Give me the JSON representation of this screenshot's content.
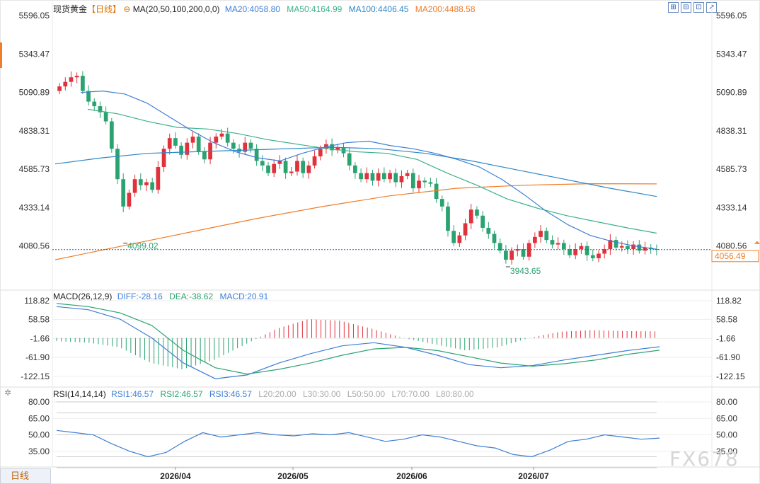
{
  "header": {
    "instrument": "现货黄金",
    "period": "【日线】",
    "ma_label": "MA(20,50,100,200,0,0)",
    "ma20": "MA20:4058.80",
    "ma50": "MA50:4164.99",
    "ma100": "MA100:4406.45",
    "ma200": "MA200:4488.58"
  },
  "toolbar": {
    "buttons": [
      "⊞",
      "⊟",
      "⊡",
      "↗"
    ]
  },
  "price_axis": {
    "ticks": [
      "5596.05",
      "5343.47",
      "5090.89",
      "4838.31",
      "4585.73",
      "4333.14",
      "4080.56"
    ],
    "current": "4056.49"
  },
  "annotations": {
    "low1": "4099.02",
    "low2": "3943.65"
  },
  "macd": {
    "label": "MACD(26,12,9)",
    "diff": "DIFF:-28.16",
    "dea": "DEA:-38.62",
    "macd": "MACD:20.91",
    "ticks": [
      "118.82",
      "58.58",
      "-1.66",
      "-61.90",
      "-122.15"
    ]
  },
  "rsi": {
    "label": "RSI(14,14,14)",
    "rsi1": "RSI1:46.57",
    "rsi2": "RSI2:46.57",
    "rsi3": "RSI3:46.57",
    "l20": "L20:20.00",
    "l30": "L30:30.00",
    "l50": "L50:50.00",
    "l70": "L70:70.00",
    "l80": "L80:80.00",
    "ticks": [
      "80.00",
      "65.00",
      "50.00",
      "35.00"
    ]
  },
  "x_axis": {
    "labels": [
      "2026/04",
      "2026/05",
      "2026/06",
      "2026/07"
    ]
  },
  "bottom_tab": "日线",
  "watermark": "FX678",
  "colors": {
    "up": "#e0323c",
    "down": "#2aa371",
    "ma20": "#3e7fd6",
    "ma50": "#3bb08a",
    "ma100": "#2f88c8",
    "ma200": "#ef7d2a",
    "diff": "#3e7fd6",
    "dea": "#2aa371"
  },
  "chart_data": [
    {
      "type": "candlestick",
      "title": "现货黄金【日线】",
      "ylim": [
        3943.65,
        5596.05
      ],
      "y_ticks": [
        5596.05,
        5343.47,
        5090.89,
        4838.31,
        4585.73,
        4333.14,
        4080.56
      ],
      "x_labels": [
        "2026/04",
        "2026/05",
        "2026/06",
        "2026/07"
      ],
      "close": [
        5130,
        5160,
        5190,
        5200,
        5100,
        5030,
        5000,
        4960,
        4900,
        4720,
        4520,
        4340,
        4430,
        4520,
        4480,
        4500,
        4450,
        4600,
        4720,
        4790,
        4740,
        4680,
        4760,
        4800,
        4700,
        4650,
        4760,
        4800,
        4820,
        4760,
        4720,
        4700,
        4760,
        4720,
        4640,
        4610,
        4560,
        4620,
        4640,
        4560,
        4570,
        4640,
        4560,
        4610,
        4670,
        4720,
        4750,
        4710,
        4730,
        4690,
        4610,
        4560,
        4520,
        4560,
        4510,
        4560,
        4520,
        4560,
        4500,
        4540,
        4560,
        4460,
        4510,
        4500,
        4490,
        4390,
        4340,
        4180,
        4100,
        4150,
        4230,
        4320,
        4280,
        4200,
        4160,
        4100,
        4050,
        3990,
        4050,
        4060,
        4010,
        4100,
        4140,
        4180,
        4120,
        4090,
        4100,
        4060,
        4020,
        4060,
        4080,
        4020,
        4000,
        4030,
        4060,
        4120,
        4070,
        4080,
        4060,
        4090,
        4050,
        4070,
        4060,
        4056
      ],
      "ma20": [
        5090,
        5100,
        5080,
        5020,
        4930,
        4840,
        4760,
        4700,
        4660,
        4640,
        4690,
        4730,
        4760,
        4770,
        4740,
        4720,
        4690,
        4650,
        4600,
        4520,
        4420,
        4310,
        4220,
        4150,
        4110,
        4080,
        4059
      ],
      "ma50": [
        4980,
        4950,
        4900,
        4860,
        4850,
        4820,
        4780,
        4750,
        4720,
        4700,
        4690,
        4650,
        4560,
        4480,
        4390,
        4330,
        4280,
        4240,
        4200,
        4165
      ],
      "ma100": [
        4620,
        4660,
        4690,
        4700,
        4710,
        4720,
        4730,
        4720,
        4690,
        4640,
        4580,
        4520,
        4460,
        4406
      ],
      "ma200": [
        3990,
        4080,
        4170,
        4260,
        4340,
        4410,
        4460,
        4480,
        4490,
        4489
      ]
    },
    {
      "type": "bar",
      "title": "MACD(26,12,9)",
      "ylim": [
        -152,
        130
      ],
      "y_ticks": [
        118.82,
        58.58,
        -1.66,
        -61.9,
        -122.15
      ],
      "diff": [
        100,
        90,
        60,
        0,
        -80,
        -130,
        -118,
        -80,
        -50,
        -25,
        -15,
        -30,
        -55,
        -85,
        -95,
        -88,
        -70,
        -55,
        -40,
        -28
      ],
      "dea": [
        110,
        100,
        80,
        40,
        -40,
        -95,
        -115,
        -100,
        -80,
        -55,
        -35,
        -30,
        -40,
        -60,
        -80,
        -90,
        -82,
        -70,
        -52,
        -39
      ],
      "macd": [
        -10,
        -15,
        -30,
        -80,
        -100,
        -70,
        -20,
        30,
        60,
        55,
        30,
        0,
        -20,
        -40,
        -30,
        0,
        20,
        25,
        22,
        21
      ]
    },
    {
      "type": "line",
      "title": "RSI(14,14,14)",
      "ylim": [
        20,
        80
      ],
      "y_ticks": [
        80,
        65,
        50,
        35
      ],
      "rsi": [
        54,
        52,
        50,
        42,
        35,
        30,
        34,
        44,
        52,
        48,
        50,
        52,
        50,
        49,
        51,
        50,
        52,
        48,
        44,
        46,
        50,
        48,
        44,
        40,
        38,
        32,
        30,
        36,
        44,
        46,
        50,
        48,
        46,
        47
      ]
    }
  ]
}
